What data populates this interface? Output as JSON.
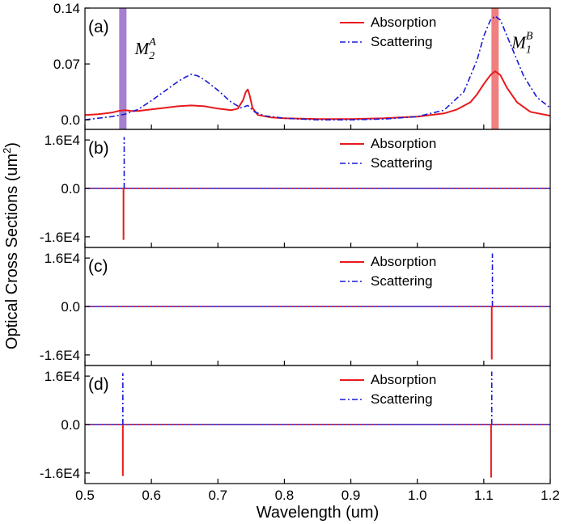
{
  "colors": {
    "absorption": "#e8191c",
    "scattering": "#1a1ad6",
    "band_purple": "#a77fd1",
    "band_red": "#f08080",
    "dotted": "#e8191c"
  },
  "chart_data": {
    "type": "line",
    "xlabel": "Wavelength (um)",
    "ylabel_main": "Optical Cross Sections (um",
    "ylabel_sup": "2",
    "ylabel_end": ")",
    "xlim": [
      0.5,
      1.2
    ],
    "xticks": [
      0.5,
      0.6,
      0.7,
      0.8,
      0.9,
      1.0,
      1.1,
      1.2
    ],
    "xtick_labels": [
      "0.5",
      "0.6",
      "0.7",
      "0.8",
      "0.9",
      "1.0",
      "1.1",
      "1.2"
    ],
    "panels": [
      {
        "label": "(a)",
        "ylim": [
          -0.012,
          0.14
        ],
        "yticks": [
          0.0,
          0.07,
          0.14
        ],
        "ytick_labels": [
          "0.0",
          "0.07",
          "0.14"
        ],
        "legend": [
          "Absorption",
          "Scattering"
        ],
        "bands": [
          {
            "x": 0.557,
            "width": 0.011,
            "color": "band_purple"
          },
          {
            "x": 1.117,
            "width": 0.011,
            "color": "band_red"
          }
        ],
        "modes": [
          {
            "base": "M",
            "sub": "2",
            "sup": "A",
            "x": 0.575,
            "y": 0.082
          },
          {
            "base": "M",
            "sub": "1",
            "sup": "B",
            "x": 1.142,
            "y": 0.09
          }
        ],
        "series": [
          {
            "name": "Absorption",
            "style": "solid",
            "color": "absorption",
            "x": [
              0.5,
              0.52,
              0.54,
              0.55,
              0.56,
              0.57,
              0.58,
              0.6,
              0.62,
              0.64,
              0.66,
              0.68,
              0.7,
              0.72,
              0.73,
              0.738,
              0.742,
              0.745,
              0.748,
              0.752,
              0.76,
              0.78,
              0.8,
              0.85,
              0.9,
              0.95,
              1.0,
              1.04,
              1.06,
              1.08,
              1.09,
              1.1,
              1.11,
              1.117,
              1.125,
              1.135,
              1.15,
              1.17,
              1.2
            ],
            "y": [
              0.006,
              0.007,
              0.009,
              0.011,
              0.012,
              0.011,
              0.011,
              0.013,
              0.015,
              0.017,
              0.018,
              0.017,
              0.014,
              0.012,
              0.014,
              0.025,
              0.035,
              0.038,
              0.03,
              0.015,
              0.006,
              0.003,
              0.002,
              0.001,
              0.001,
              0.002,
              0.004,
              0.008,
              0.013,
              0.022,
              0.032,
              0.045,
              0.056,
              0.061,
              0.056,
              0.04,
              0.022,
              0.01,
              0.005
            ]
          },
          {
            "name": "Scattering",
            "style": "dashdot",
            "color": "scattering",
            "x": [
              0.5,
              0.52,
              0.54,
              0.56,
              0.58,
              0.6,
              0.62,
              0.64,
              0.65,
              0.66,
              0.67,
              0.68,
              0.7,
              0.72,
              0.735,
              0.745,
              0.755,
              0.77,
              0.8,
              0.85,
              0.9,
              0.95,
              1.0,
              1.04,
              1.07,
              1.09,
              1.1,
              1.11,
              1.117,
              1.125,
              1.14,
              1.16,
              1.18,
              1.2
            ],
            "y": [
              0.0,
              0.002,
              0.004,
              0.007,
              0.013,
              0.024,
              0.036,
              0.048,
              0.053,
              0.057,
              0.055,
              0.05,
              0.037,
              0.022,
              0.015,
              0.018,
              0.01,
              0.005,
              0.002,
              0.0,
              0.0,
              0.001,
              0.004,
              0.012,
              0.035,
              0.075,
              0.105,
              0.125,
              0.13,
              0.125,
              0.095,
              0.055,
              0.028,
              0.015
            ]
          }
        ]
      },
      {
        "label": "(b)",
        "ylim": [
          -19500,
          19500
        ],
        "yticks": [
          -16000,
          0,
          16000
        ],
        "ytick_labels": [
          "-1.6E4",
          "0.0",
          "1.6E4"
        ],
        "legend": [
          "Absorption",
          "Scattering"
        ],
        "spikes": [
          {
            "series": "Absorption",
            "x": 0.558,
            "y": -17000
          },
          {
            "series": "Scattering",
            "x": 0.559,
            "y": 17000
          }
        ]
      },
      {
        "label": "(c)",
        "ylim": [
          -19500,
          19500
        ],
        "yticks": [
          -16000,
          0,
          16000
        ],
        "ytick_labels": [
          "-1.6E4",
          "0.0",
          "1.6E4"
        ],
        "legend": [
          "Absorption",
          "Scattering"
        ],
        "spikes": [
          {
            "series": "Absorption",
            "x": 1.112,
            "y": -17500
          },
          {
            "series": "Scattering",
            "x": 1.113,
            "y": 17500
          }
        ]
      },
      {
        "label": "(d)",
        "ylim": [
          -19500,
          19500
        ],
        "yticks": [
          -16000,
          0,
          16000
        ],
        "ytick_labels": [
          "-1.6E4",
          "0.0",
          "1.6E4"
        ],
        "legend": [
          "Absorption",
          "Scattering"
        ],
        "spikes": [
          {
            "series": "Absorption",
            "x": 0.557,
            "y": -17000
          },
          {
            "series": "Scattering",
            "x": 0.557,
            "y": 17000
          },
          {
            "series": "Absorption",
            "x": 1.111,
            "y": -17500
          },
          {
            "series": "Scattering",
            "x": 1.112,
            "y": 17500
          }
        ]
      }
    ]
  }
}
